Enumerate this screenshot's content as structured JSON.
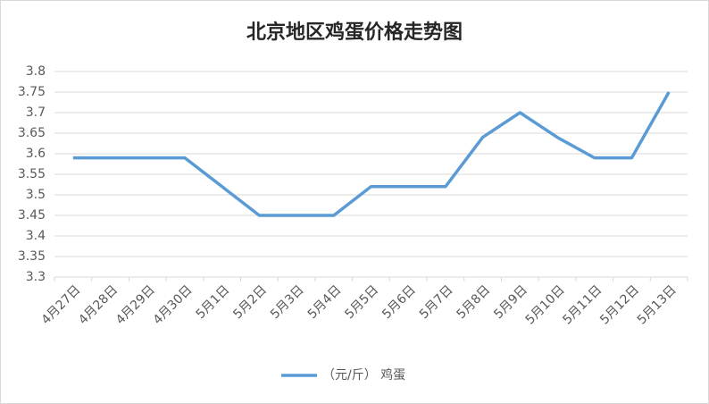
{
  "chart_data": {
    "type": "line",
    "title": "北京地区鸡蛋价格走势图",
    "categories": [
      "4月27日",
      "4月28日",
      "4月29日",
      "4月30日",
      "5月1日",
      "5月2日",
      "5月3日",
      "5月4日",
      "5月5日",
      "5月6日",
      "5月7日",
      "5月8日",
      "5月9日",
      "5月10日",
      "5月11日",
      "5月12日",
      "5月13日"
    ],
    "series": [
      {
        "name": "（元/斤） 鸡蛋",
        "color": "#5b9bd5",
        "values": [
          3.59,
          3.59,
          3.59,
          3.59,
          3.52,
          3.45,
          3.45,
          3.45,
          3.52,
          3.52,
          3.52,
          3.64,
          3.7,
          3.64,
          3.59,
          3.59,
          3.75
        ]
      }
    ],
    "ylim": [
      3.3,
      3.8
    ],
    "yticks": [
      3.3,
      3.35,
      3.4,
      3.45,
      3.5,
      3.55,
      3.6,
      3.65,
      3.7,
      3.75,
      3.8
    ],
    "grid": true,
    "legend": "bottom"
  }
}
